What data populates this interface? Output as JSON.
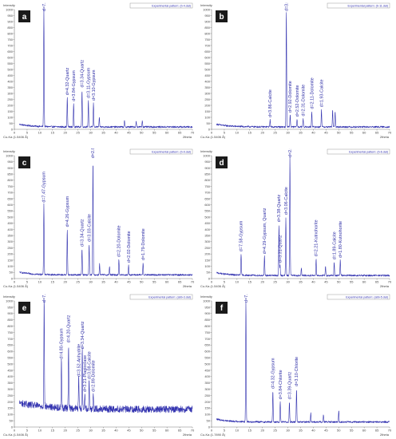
{
  "chart_data": [
    {
      "type": "line",
      "panel_letter": "a",
      "ylabel": "Intensity",
      "xlabel": "2theta",
      "radiation_label": "Cu-Ka (1.5406 Å)",
      "pattern_label": "Experimental pattern: (b-4.dat)",
      "ylim": [
        0,
        1000
      ],
      "y_ticks": [
        0,
        50,
        100,
        150,
        200,
        250,
        300,
        350,
        400,
        450,
        500,
        550,
        600,
        650,
        700,
        750,
        800,
        850,
        900,
        950,
        1000
      ],
      "xlim": [
        0,
        70
      ],
      "x_ticks": [
        0,
        5,
        10,
        15,
        20,
        25,
        30,
        35,
        40,
        45,
        50,
        55,
        60,
        65,
        70
      ],
      "baseline": 20,
      "peaks": [
        {
          "x": 11.6,
          "y": 1000,
          "label": "d=7.58-Gypsum"
        },
        {
          "x": 20.8,
          "y": 265,
          "label": "d=4.32-Quartz"
        },
        {
          "x": 23.3,
          "y": 215,
          "label": "d=3.84-Gypsum"
        },
        {
          "x": 26.6,
          "y": 330,
          "label": "d=3.34-Quartz"
        },
        {
          "x": 29.1,
          "y": 240,
          "label": "d=3.11-Gypsum"
        },
        {
          "x": 31.1,
          "y": 220,
          "label": "d=3.10-Gypsum"
        },
        {
          "x": 33.4,
          "y": 95,
          "label": ""
        },
        {
          "x": 43.3,
          "y": 70,
          "label": ""
        },
        {
          "x": 47.9,
          "y": 65,
          "label": ""
        },
        {
          "x": 50.3,
          "y": 75,
          "label": ""
        }
      ]
    },
    {
      "type": "line",
      "panel_letter": "b",
      "ylabel": "Intensity",
      "xlabel": "2theta",
      "radiation_label": "Cu-Ka (1.5406 Å)",
      "pattern_label": "Experimental pattern: (b-11.dat)",
      "ylim": [
        0,
        1000
      ],
      "y_ticks": [
        0,
        50,
        100,
        150,
        200,
        250,
        300,
        350,
        400,
        450,
        500,
        550,
        600,
        650,
        700,
        750,
        800,
        850,
        900,
        950,
        1000
      ],
      "xlim": [
        0,
        70
      ],
      "x_ticks": [
        0,
        5,
        10,
        15,
        20,
        25,
        30,
        35,
        40,
        45,
        50,
        55,
        60,
        65,
        70
      ],
      "baseline": 20,
      "peaks": [
        {
          "x": 23.0,
          "y": 80,
          "label": "d=3.86-Calcite"
        },
        {
          "x": 29.4,
          "y": 1000,
          "label": "d=3.06-Calcite"
        },
        {
          "x": 30.9,
          "y": 120,
          "label": "d=2.92-Dolomite"
        },
        {
          "x": 33.6,
          "y": 85,
          "label": "d=2.52-Dolomite"
        },
        {
          "x": 36.0,
          "y": 90,
          "label": "d=2.31-Dolomite"
        },
        {
          "x": 39.4,
          "y": 150,
          "label": "d=2.11-Dolomite"
        },
        {
          "x": 43.2,
          "y": 165,
          "label": "d=1.93-Calcite"
        },
        {
          "x": 47.6,
          "y": 160,
          "label": ""
        },
        {
          "x": 48.6,
          "y": 150,
          "label": ""
        }
      ]
    },
    {
      "type": "line",
      "panel_letter": "c",
      "ylabel": "Intensity",
      "xlabel": "2theta",
      "radiation_label": "Cu-Ka (1.5406 Å)",
      "pattern_label": "Experimental pattern: (b-9.dat)",
      "ylim": [
        0,
        1000
      ],
      "y_ticks": [
        0,
        50,
        100,
        150,
        200,
        250,
        300,
        350,
        400,
        450,
        500,
        550,
        600,
        650,
        700,
        750,
        800,
        850,
        900,
        950,
        1000
      ],
      "xlim": [
        0,
        70
      ],
      "x_ticks": [
        0,
        5,
        10,
        15,
        20,
        25,
        30,
        35,
        40,
        45,
        50,
        55,
        60,
        65,
        70
      ],
      "baseline": 30,
      "peaks": [
        {
          "x": 11.6,
          "y": 600,
          "label": "d=7.47-Gypsum"
        },
        {
          "x": 20.8,
          "y": 400,
          "label": "d=4.26-Gypsum"
        },
        {
          "x": 26.6,
          "y": 240,
          "label": "d=3.34-Quartz"
        },
        {
          "x": 29.4,
          "y": 280,
          "label": "d=3.03-Calcite"
        },
        {
          "x": 30.9,
          "y": 960,
          "label": "d=2.87-Dolomite"
        },
        {
          "x": 41.1,
          "y": 155,
          "label": "d=2.20-Dolomite"
        },
        {
          "x": 44.9,
          "y": 110,
          "label": "d=2.02-Dolomite"
        },
        {
          "x": 50.6,
          "y": 130,
          "label": "d=1.79-Dolomite"
        },
        {
          "x": 33.5,
          "y": 120,
          "label": ""
        },
        {
          "x": 37.4,
          "y": 100,
          "label": ""
        }
      ]
    },
    {
      "type": "line",
      "panel_letter": "d",
      "ylabel": "Intensity",
      "xlabel": "2theta",
      "radiation_label": "Cu-Ka (1.5406 Å)",
      "pattern_label": "Experimental pattern: (b-6.dat)",
      "ylim": [
        0,
        1000
      ],
      "y_ticks": [
        0,
        50,
        100,
        150,
        200,
        250,
        300,
        350,
        400,
        450,
        500,
        550,
        600,
        650,
        700,
        750,
        800,
        850,
        900,
        950,
        1000
      ],
      "xlim": [
        0,
        70
      ],
      "x_ticks": [
        0,
        5,
        10,
        15,
        20,
        25,
        30,
        35,
        40,
        45,
        50,
        55,
        60,
        65,
        70
      ],
      "baseline": 25,
      "peaks": [
        {
          "x": 11.6,
          "y": 200,
          "label": "d=7.58-Gypsum"
        },
        {
          "x": 20.8,
          "y": 180,
          "label": "d=4.29-Gypsum, Quartz"
        },
        {
          "x": 26.5,
          "y": 440,
          "label": "d=3.38-Quartz"
        },
        {
          "x": 29.2,
          "y": 500,
          "label": "d=3.06-Calcite"
        },
        {
          "x": 30.8,
          "y": 1000,
          "label": "d=2.91-Kutnohorite"
        },
        {
          "x": 26.9,
          "y": 110,
          "label": "d=3.31-Quartz"
        },
        {
          "x": 41.1,
          "y": 160,
          "label": "d=2.21-Kutnohorite"
        },
        {
          "x": 48.2,
          "y": 135,
          "label": "d=1.89-Calcite"
        },
        {
          "x": 50.6,
          "y": 150,
          "label": "d=1.80-Kutnohorite"
        },
        {
          "x": 35.3,
          "y": 85,
          "label": ""
        },
        {
          "x": 44.8,
          "y": 95,
          "label": ""
        }
      ]
    },
    {
      "type": "line",
      "panel_letter": "e",
      "ylabel": "Intensity",
      "xlabel": "2theta",
      "radiation_label": "Cu-Ka (1.5406 Å)",
      "pattern_label": "Experimental pattern: (abb-3.dat)",
      "ylim": [
        0,
        1000
      ],
      "y_ticks": [
        0,
        50,
        100,
        150,
        200,
        250,
        300,
        350,
        400,
        450,
        500,
        550,
        600,
        650,
        700,
        750,
        800,
        850,
        900,
        950,
        1000
      ],
      "xlim": [
        0,
        70
      ],
      "x_ticks": [
        0,
        5,
        10,
        15,
        20,
        25,
        30,
        35,
        40,
        45,
        50,
        55,
        60,
        65,
        70
      ],
      "baseline": 140,
      "peaks": [
        {
          "x": 11.7,
          "y": 1000,
          "label": "d=7.53-Gypsum"
        },
        {
          "x": 18.5,
          "y": 520,
          "label": "d=4.80-Gypsum"
        },
        {
          "x": 21.3,
          "y": 650,
          "label": "d=4.20-Quartz"
        },
        {
          "x": 25.3,
          "y": 380,
          "label": "d=3.52-Anhydrite"
        },
        {
          "x": 27.7,
          "y": 260,
          "label": "d=3.21-Plagioclase"
        },
        {
          "x": 26.7,
          "y": 600,
          "label": "d=3.34-Quartz"
        },
        {
          "x": 29.4,
          "y": 360,
          "label": "d=3.08-Calcite"
        },
        {
          "x": 31.0,
          "y": 260,
          "label": "d=2.89-Dolomite"
        }
      ]
    },
    {
      "type": "line",
      "panel_letter": "f",
      "ylabel": "Intensity",
      "xlabel": "2theta",
      "radiation_label": "Cu-Ka (1.7890 Å)",
      "pattern_label": "Experimental pattern: (abb-5.dat)",
      "ylim": [
        0,
        1000
      ],
      "y_ticks": [
        0,
        50,
        100,
        150,
        200,
        250,
        300,
        350,
        400,
        450,
        500,
        550,
        600,
        650,
        700,
        750,
        800,
        850,
        900,
        950,
        1000
      ],
      "xlim": [
        0,
        70
      ],
      "x_ticks": [
        0,
        5,
        10,
        15,
        20,
        25,
        30,
        35,
        40,
        45,
        50,
        55,
        60,
        65,
        70
      ],
      "baseline": 40,
      "peaks": [
        {
          "x": 13.5,
          "y": 1000,
          "label": "d=7.58-Gypsum"
        },
        {
          "x": 24.1,
          "y": 285,
          "label": "d=4.32-Gypsum"
        },
        {
          "x": 27.0,
          "y": 200,
          "label": "d=3.84-Chlorite"
        },
        {
          "x": 30.6,
          "y": 200,
          "label": "d=3.39-Quartz"
        },
        {
          "x": 33.4,
          "y": 305,
          "label": "d=3.10-Chlorite"
        },
        {
          "x": 39.0,
          "y": 110,
          "label": ""
        },
        {
          "x": 44.0,
          "y": 100,
          "label": ""
        },
        {
          "x": 50.0,
          "y": 130,
          "label": ""
        }
      ]
    }
  ]
}
